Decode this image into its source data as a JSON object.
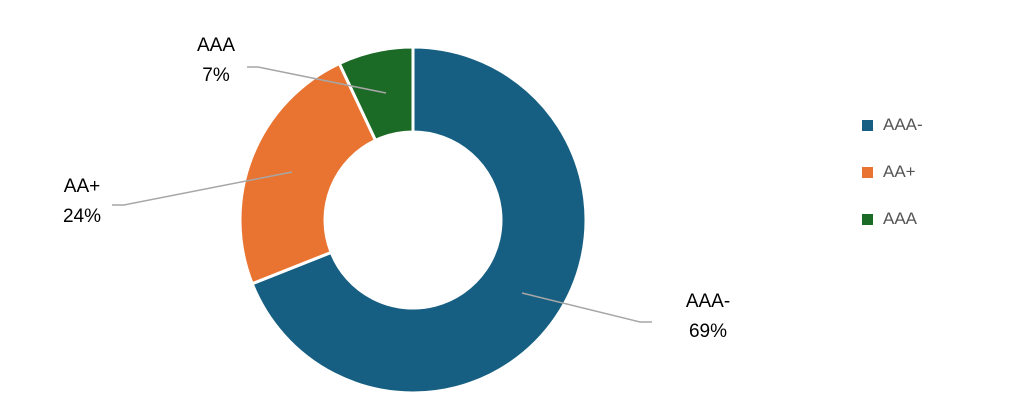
{
  "chart_data": {
    "type": "pie",
    "subtype": "donut",
    "title": "",
    "slices": [
      {
        "label": "AAA-",
        "value": 69,
        "value_label": "69%",
        "color": "#175f82"
      },
      {
        "label": "AA+",
        "value": 24,
        "value_label": "24%",
        "color": "#e97432"
      },
      {
        "label": "AAA",
        "value": 7,
        "value_label": "7%",
        "color": "#1b6a26"
      }
    ],
    "legend": {
      "position": "right",
      "entries": [
        "AAA-",
        "AA+",
        "AAA"
      ]
    },
    "data_labels": "outside with leader lines"
  }
}
